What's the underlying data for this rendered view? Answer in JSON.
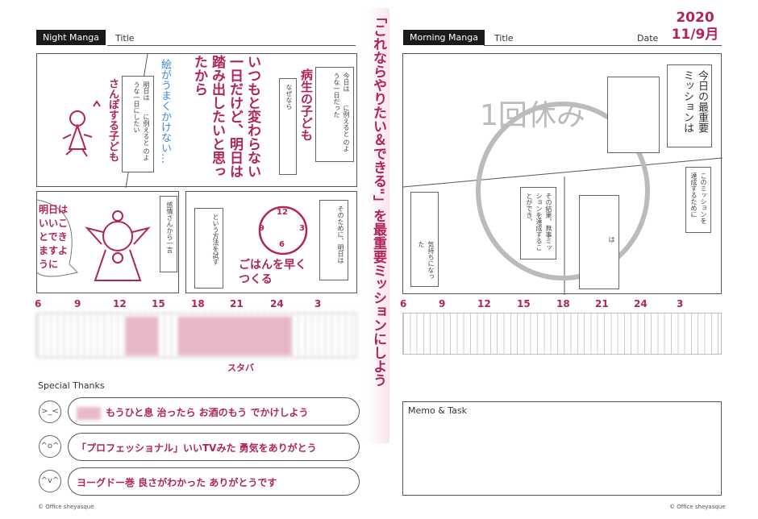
{
  "left": {
    "tab": "Night Manga",
    "title_label": "Title",
    "boxes": {
      "today": "今日は　　に例えると のような一日だった",
      "because": "なぜなら",
      "tomorrow": "明日は　　に例えると のような一日にしたい",
      "emotion": "感情さんから一言",
      "method": "という方法を試す",
      "therefore": "そのために、明日は"
    },
    "handwriting": {
      "today_answer": "病生の子ども",
      "because_answer": "いつもと変わらない一日だけど、明日は踏み出したいと思ったから",
      "tomorrow_answer": "さんぽする子ども",
      "note_blue": "絵がうまくかけない…",
      "speech": "明日はいいことできますように",
      "method_answer": "ごはんを早くつくる",
      "clock": [
        "12",
        "3",
        "6",
        "9"
      ]
    },
    "timeline": [
      "6",
      "9",
      "12",
      "15",
      "18",
      "21",
      "24",
      "3"
    ],
    "timeline_note": "スタバ"
  },
  "center_note": "「これならやりたい＆できる\"」を最重要ミッションにしよう",
  "right": {
    "tab": "Morning Manga",
    "title_label": "Title",
    "date_label": "Date",
    "date_value": "2020 11/9月",
    "boxes": {
      "mission": "今日の最重要ミッションは",
      "achieve": "このミッションを達成するために",
      "result": "その結果、無事ミッションを達成することができ、",
      "wa": "は",
      "feeling": "気持ちになった"
    },
    "watermark": "1回休み",
    "timeline": [
      "6",
      "9",
      "12",
      "15",
      "18",
      "21",
      "24",
      "3"
    ],
    "memo_label": "Memo & Task"
  },
  "thanks": {
    "label": "Special Thanks",
    "items": [
      {
        "face": ">_<",
        "text": "もうひと息 治ったら お酒のもう でかけしよう"
      },
      {
        "face": "^o^",
        "text": "「プロフェッショナル」いいTVみた 勇気をありがとう"
      },
      {
        "face": "^v^",
        "text": "ヨーグドー巻 良さがわかった ありがとうです"
      }
    ]
  },
  "copyright": "© Office sheyasque",
  "colors": {
    "ink": "#b0245c",
    "blue": "#3b8be0",
    "tab": "#1a1a1a"
  }
}
